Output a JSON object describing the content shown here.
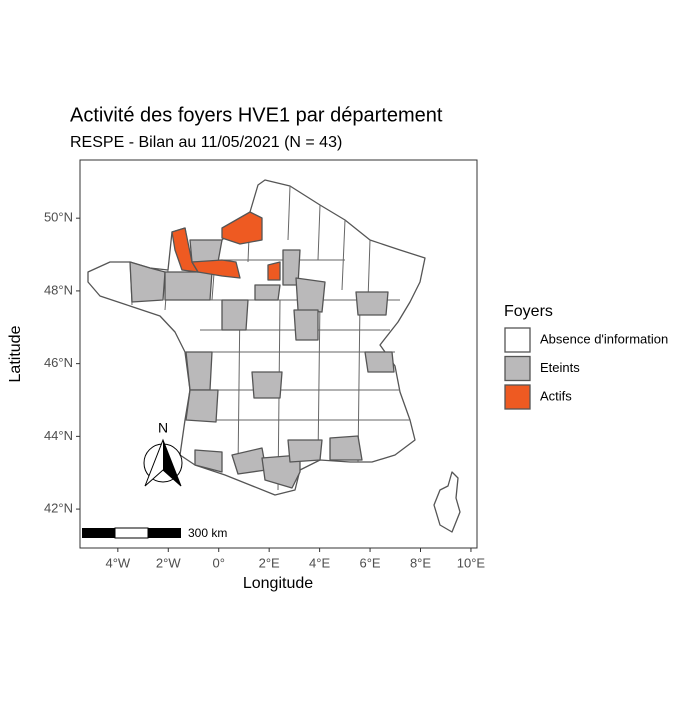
{
  "chart_data": {
    "type": "map",
    "title": "Activité des foyers HVE1 par département",
    "subtitle": "RESPE - Bilan au 11/05/2021 (N = 43)",
    "x_label": "Longitude",
    "y_label": "Latitude",
    "xlim": [
      -5.5,
      10.24
    ],
    "ylim": [
      40.93,
      51.6
    ],
    "xticks": [
      {
        "value": -4,
        "label": "4°W"
      },
      {
        "value": -2,
        "label": "2°W"
      },
      {
        "value": 0,
        "label": "0°"
      },
      {
        "value": 2,
        "label": "2°E"
      },
      {
        "value": 4,
        "label": "4°E"
      },
      {
        "value": 6,
        "label": "6°E"
      },
      {
        "value": 8,
        "label": "8°E"
      },
      {
        "value": 10,
        "label": "10°E"
      }
    ],
    "yticks": [
      {
        "value": 42,
        "label": "42°N"
      },
      {
        "value": 44,
        "label": "44°N"
      },
      {
        "value": 46,
        "label": "46°N"
      },
      {
        "value": 48,
        "label": "48°N"
      },
      {
        "value": 50,
        "label": "50°N"
      }
    ],
    "legend": {
      "title": "Foyers",
      "entries": [
        {
          "label": "Absence d'information",
          "color": "#ffffff"
        },
        {
          "label": "Eteints",
          "color": "#bab9ba"
        },
        {
          "label": "Actifs",
          "color": "#ee5a22"
        }
      ]
    },
    "scale_label": "300 km",
    "north_label": "N"
  }
}
